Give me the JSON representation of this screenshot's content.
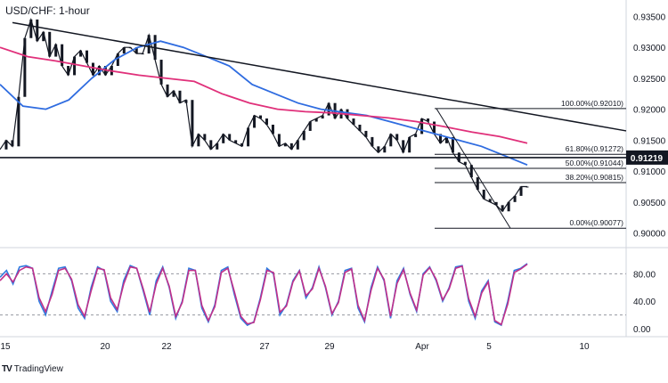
{
  "header": {
    "title": "USD/CHF: 1-hour"
  },
  "footer": {
    "brand_logo": "TV",
    "brand_name": "TradingView"
  },
  "price_tag": {
    "value": "0.91219",
    "bg_color": "#131722"
  },
  "chart_data": [
    {
      "type": "line",
      "title": "USD/CHF: 1-hour",
      "ylim": [
        0.8985,
        0.9365
      ],
      "y_ticks": [
        "0.93500",
        "0.93000",
        "0.92500",
        "0.92000",
        "0.91500",
        "0.91000",
        "0.90500",
        "0.90000"
      ],
      "x_ticks": [
        "15",
        "20",
        "22",
        "27",
        "29",
        "Apr",
        "5",
        "10"
      ],
      "price_series": [
        0.9135,
        0.915,
        0.914,
        0.922,
        0.9315,
        0.9345,
        0.931,
        0.9325,
        0.9285,
        0.9305,
        0.927,
        0.9255,
        0.9285,
        0.9295,
        0.9275,
        0.9255,
        0.927,
        0.9255,
        0.927,
        0.929,
        0.93,
        0.93,
        0.929,
        0.929,
        0.932,
        0.928,
        0.924,
        0.922,
        0.923,
        0.921,
        0.9215,
        0.914,
        0.916,
        0.915,
        0.9135,
        0.9145,
        0.916,
        0.915,
        0.9145,
        0.914,
        0.917,
        0.919,
        0.9185,
        0.9175,
        0.916,
        0.914,
        0.9145,
        0.9135,
        0.915,
        0.9165,
        0.918,
        0.9185,
        0.919,
        0.921,
        0.9185,
        0.92,
        0.9185,
        0.9175,
        0.9165,
        0.9155,
        0.914,
        0.913,
        0.914,
        0.916,
        0.915,
        0.913,
        0.9155,
        0.916,
        0.9185,
        0.918,
        0.916,
        0.9145,
        0.9155,
        0.913,
        0.9115,
        0.911,
        0.909,
        0.907,
        0.9055,
        0.905,
        0.9045,
        0.9035,
        0.905,
        0.906,
        0.9075,
        0.9075
      ],
      "series": [
        {
          "name": "",
          "color": "#2f6ce0",
          "values": [
            0.924,
            0.9205,
            0.92,
            0.9215,
            0.925,
            0.928,
            0.93,
            0.931,
            0.93,
            0.9285,
            0.927,
            0.924,
            0.9225,
            0.921,
            0.92,
            0.9195,
            0.919,
            0.918,
            0.917,
            0.916,
            0.915,
            0.914,
            0.9125,
            0.911
          ]
        },
        {
          "name": "",
          "color": "#e0307a",
          "values": [
            0.93,
            0.9285,
            0.9278,
            0.927,
            0.9262,
            0.9255,
            0.925,
            0.9245,
            0.9225,
            0.921,
            0.92,
            0.9196,
            0.9194,
            0.919,
            0.9186,
            0.918,
            0.9172,
            0.9163,
            0.9156,
            0.9145
          ]
        }
      ],
      "trendline": {
        "from": 0.934,
        "to": 0.9165,
        "label": ""
      },
      "horizontal_line": {
        "value": 0.91219,
        "label": ""
      },
      "fibonacci": {
        "levels": [
          {
            "label": "100.00%(0.92010)",
            "value": 0.9201
          },
          {
            "label": "61.80%(0.91272)",
            "value": 0.91272
          },
          {
            "label": "50.00%(0.91044)",
            "value": 0.91044
          },
          {
            "label": "38.20%(0.90815)",
            "value": 0.90815
          },
          {
            "label": "0.00%(0.90077)",
            "value": 0.90077
          }
        ]
      }
    },
    {
      "type": "line",
      "title": "",
      "ylim": [
        0,
        100
      ],
      "y_ticks": [
        "80.00",
        "40.00",
        "0.00"
      ],
      "dashed_levels": [
        80,
        20
      ],
      "series": [
        {
          "name": "",
          "color": "#2f7be0",
          "values": [
            75,
            85,
            65,
            90,
            92,
            88,
            40,
            20,
            55,
            88,
            90,
            70,
            30,
            15,
            60,
            90,
            85,
            40,
            25,
            70,
            92,
            88,
            55,
            20,
            70,
            90,
            60,
            15,
            40,
            88,
            85,
            30,
            10,
            35,
            85,
            90,
            50,
            15,
            5,
            10,
            45,
            88,
            80,
            20,
            35,
            70,
            85,
            45,
            60,
            90,
            60,
            20,
            40,
            85,
            88,
            30,
            10,
            60,
            90,
            70,
            15,
            70,
            88,
            50,
            25,
            80,
            90,
            70,
            40,
            60,
            90,
            92,
            40,
            15,
            55,
            70,
            10,
            5,
            40,
            85,
            88,
            95
          ]
        },
        {
          "name": "",
          "color": "#c0308a",
          "values": [
            70,
            80,
            68,
            85,
            90,
            88,
            45,
            25,
            50,
            85,
            88,
            72,
            35,
            18,
            55,
            88,
            86,
            45,
            28,
            65,
            90,
            88,
            58,
            24,
            65,
            88,
            62,
            18,
            38,
            85,
            85,
            34,
            12,
            32,
            82,
            88,
            54,
            18,
            7,
            9,
            42,
            85,
            82,
            24,
            33,
            68,
            84,
            48,
            58,
            88,
            62,
            22,
            38,
            82,
            87,
            34,
            12,
            56,
            88,
            72,
            18,
            66,
            86,
            52,
            27,
            78,
            89,
            72,
            42,
            58,
            88,
            91,
            44,
            18,
            52,
            68,
            12,
            6,
            36,
            82,
            87,
            94
          ]
        }
      ]
    }
  ]
}
